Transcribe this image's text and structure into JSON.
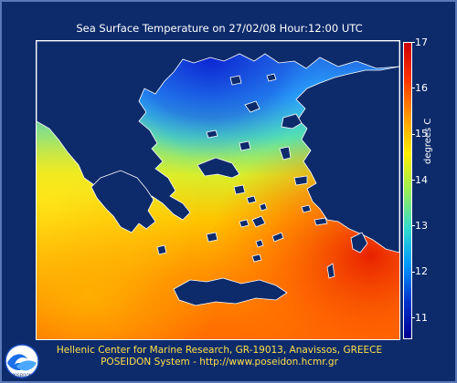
{
  "title": "Sea Surface Temperature on 27/02/08 Hour:12:00 UTC",
  "colorbar": {
    "unit": "degrees C",
    "ticks": [
      "17",
      "16",
      "15",
      "14",
      "13",
      "12",
      "11"
    ],
    "min": 10.5,
    "max": 17.2,
    "colors": [
      "#00008f",
      "#0033cc",
      "#0099ff",
      "#33ddcc",
      "#99ee55",
      "#ffee00",
      "#ff9900",
      "#ff3300",
      "#cc0000"
    ]
  },
  "footer": {
    "line1": "Hellenic Center for Marine Research, GR-19013, Anavissos, GREECE",
    "line2": "POSEIDON System - http://www.poseidon.hcmr.gr"
  },
  "logo": {
    "text": "POSEIDON",
    "icon": "poseidon-wave-logo"
  },
  "colors": {
    "background": "#0d2b6b",
    "land": "#0d2b6b",
    "coast": "#ffffff",
    "footer_text": "#ffe04a"
  }
}
